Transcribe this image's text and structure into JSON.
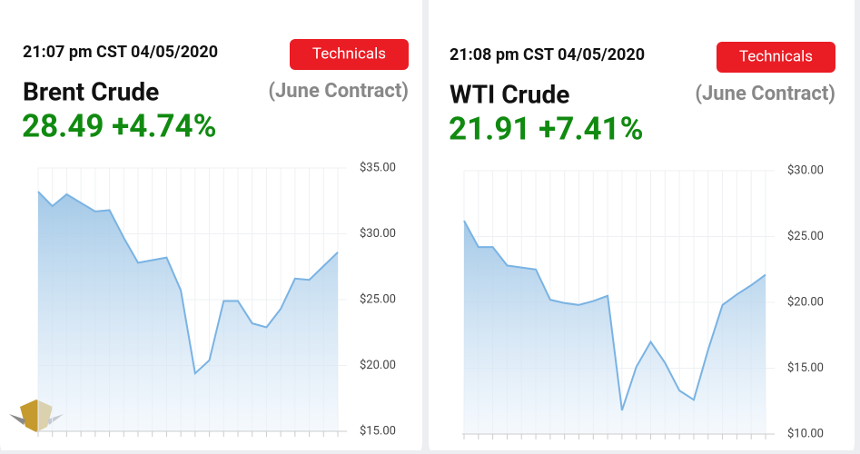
{
  "cards": [
    {
      "timestamp": "21:07 pm CST 04/05/2020",
      "button": "Technicals",
      "name": "Brent Crude",
      "contract": "(June Contract)",
      "price": "28.49 +4.74%"
    },
    {
      "timestamp": "21:08 pm CST 04/05/2020",
      "button": "Technicals",
      "name": "WTI Crude",
      "contract": "(June Contract)",
      "price": "21.91 +7.41%"
    }
  ],
  "chart_data": [
    {
      "type": "area",
      "color": "#7ab3e3",
      "categories": [
        null,
        null,
        null,
        null,
        null,
        null,
        null,
        null,
        null,
        null,
        null,
        null,
        null,
        null,
        null,
        null,
        null,
        null,
        null,
        null,
        null,
        null
      ],
      "values": [
        33.2,
        32.1,
        33.0,
        32.35,
        31.7,
        31.8,
        29.7,
        27.8,
        28.0,
        28.2,
        25.7,
        19.4,
        20.4,
        24.9,
        24.9,
        23.2,
        22.9,
        24.3,
        26.6,
        26.5,
        27.55,
        28.6
      ],
      "ylim": [
        15,
        35
      ],
      "yticks": [
        {
          "value": 15,
          "label": "$15.00"
        },
        {
          "value": 20,
          "label": "$20.00"
        },
        {
          "value": 25,
          "label": "$25.00"
        },
        {
          "value": 30,
          "label": "$30.00"
        },
        {
          "value": 35,
          "label": "$35.00"
        }
      ]
    },
    {
      "type": "area",
      "color": "#7ab3e3",
      "categories": [
        null,
        null,
        null,
        null,
        null,
        null,
        null,
        null,
        null,
        null,
        null,
        null,
        null,
        null,
        null,
        null,
        null,
        null,
        null,
        null,
        null,
        null
      ],
      "values": [
        26.2,
        24.2,
        24.2,
        22.8,
        22.65,
        22.5,
        20.2,
        19.95,
        19.8,
        20.1,
        20.5,
        11.8,
        15.1,
        17.0,
        15.4,
        13.3,
        12.6,
        16.4,
        19.8,
        20.6,
        21.3,
        22.1
      ],
      "ylim": [
        10,
        30
      ],
      "yticks": [
        {
          "value": 10,
          "label": "$10.00"
        },
        {
          "value": 15,
          "label": "$15.00"
        },
        {
          "value": 20,
          "label": "$20.00"
        },
        {
          "value": 25,
          "label": "$25.00"
        },
        {
          "value": 30,
          "label": "$30.00"
        }
      ]
    }
  ]
}
